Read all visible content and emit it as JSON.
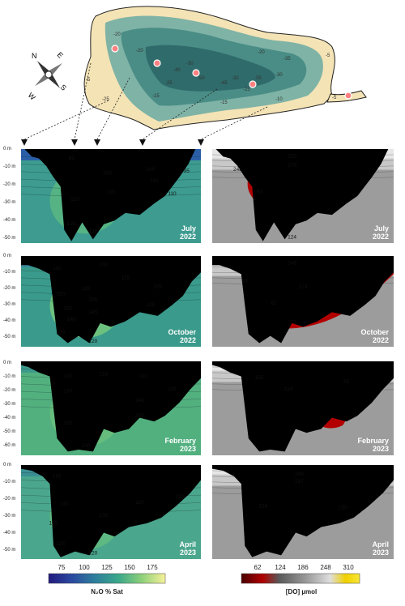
{
  "map": {
    "compass": {
      "n": "N",
      "e": "E",
      "s": "S",
      "w": "W"
    },
    "contours": [
      "-20",
      "-5",
      "-20",
      "-25",
      "-30",
      "-40",
      "-50",
      "-45",
      "-30",
      "-25",
      "-35",
      "-15",
      "-10",
      "-25",
      "-15",
      "-30",
      "-20",
      "-5",
      "-35",
      "-5"
    ]
  },
  "depth_axis": [
    "0 m",
    "-10 m",
    "-20 m",
    "-30 m",
    "-40 m",
    "-50 m"
  ],
  "depth_axis_panel3": [
    "0 m",
    "-10 m",
    "-20 m",
    "-30 m",
    "-40 m",
    "-50 m",
    "-60 m"
  ],
  "left_panels": [
    {
      "label1": "July",
      "label2": "2022",
      "labels": [
        "85",
        "105",
        "100",
        "95",
        "115",
        "115",
        "125",
        "110",
        "120",
        "130"
      ]
    },
    {
      "label1": "October",
      "label2": "2022",
      "labels": [
        "110",
        "100",
        "135",
        "115",
        "105",
        "150",
        "150",
        "155",
        "145",
        "125",
        "140",
        "130",
        "120"
      ]
    },
    {
      "label1": "February",
      "label2": "2023",
      "labels": [
        "120",
        "115",
        "110",
        "130",
        "125",
        "140",
        "135",
        "145",
        "130"
      ]
    },
    {
      "label1": "April",
      "label2": "2023",
      "labels": [
        "105",
        "110",
        "120",
        "130",
        "135",
        "125",
        "125",
        "120"
      ]
    }
  ],
  "right_panels": [
    {
      "label1": "July",
      "label2": "2022",
      "labels": [
        "310",
        "279",
        "248",
        "93",
        "124"
      ]
    },
    {
      "label1": "October",
      "label2": "2022",
      "labels": [
        "248",
        "93",
        "124",
        "62"
      ]
    },
    {
      "label1": "February",
      "label2": "2023",
      "labels": [
        "155",
        "124",
        "93"
      ]
    },
    {
      "label1": "April",
      "label2": "2023",
      "labels": [
        "248",
        "217",
        "124",
        "155"
      ]
    }
  ],
  "n2o_colorbar": {
    "ticks": [
      "75",
      "100",
      "125",
      "150",
      "175"
    ],
    "label": "N₂O % Sat"
  },
  "do_colorbar": {
    "ticks": [
      "62",
      "124",
      "186",
      "248",
      "310"
    ],
    "label": "[DO] µmol"
  },
  "chart_data": [
    {
      "type": "heatmap",
      "variable": "N2O % Sat",
      "date": "July 2022",
      "contour_labels": [
        85,
        105,
        100,
        95,
        115,
        115,
        125,
        110,
        120,
        130
      ]
    },
    {
      "type": "heatmap",
      "variable": "N2O % Sat",
      "date": "October 2022",
      "contour_labels": [
        110,
        100,
        135,
        115,
        105,
        150,
        150,
        155,
        145,
        125,
        140,
        130,
        120
      ]
    },
    {
      "type": "heatmap",
      "variable": "N2O % Sat",
      "date": "February 2023",
      "contour_labels": [
        120,
        115,
        110,
        130,
        125,
        140,
        135,
        145,
        130
      ]
    },
    {
      "type": "heatmap",
      "variable": "N2O % Sat",
      "date": "April 2023",
      "contour_labels": [
        105,
        110,
        120,
        130,
        135,
        125,
        125,
        120
      ]
    },
    {
      "type": "heatmap",
      "variable": "[DO] µmol",
      "date": "July 2022",
      "contour_labels": [
        310,
        279,
        248,
        93,
        124
      ]
    },
    {
      "type": "heatmap",
      "variable": "[DO] µmol",
      "date": "October 2022",
      "contour_labels": [
        248,
        93,
        124,
        62
      ]
    },
    {
      "type": "heatmap",
      "variable": "[DO] µmol",
      "date": "February 2023",
      "contour_labels": [
        155,
        124,
        93
      ]
    },
    {
      "type": "heatmap",
      "variable": "[DO] µmol",
      "date": "April 2023",
      "contour_labels": [
        248,
        217,
        124,
        155
      ]
    }
  ],
  "colors": {
    "bathy": "#000000",
    "n2o_low": "#1f2a7a",
    "n2o_mid": "#3e9a8a",
    "n2o_high": "#f4f094",
    "do_low": "#8a0000",
    "do_mid": "#bfbfbf",
    "do_high": "#f3e022"
  }
}
